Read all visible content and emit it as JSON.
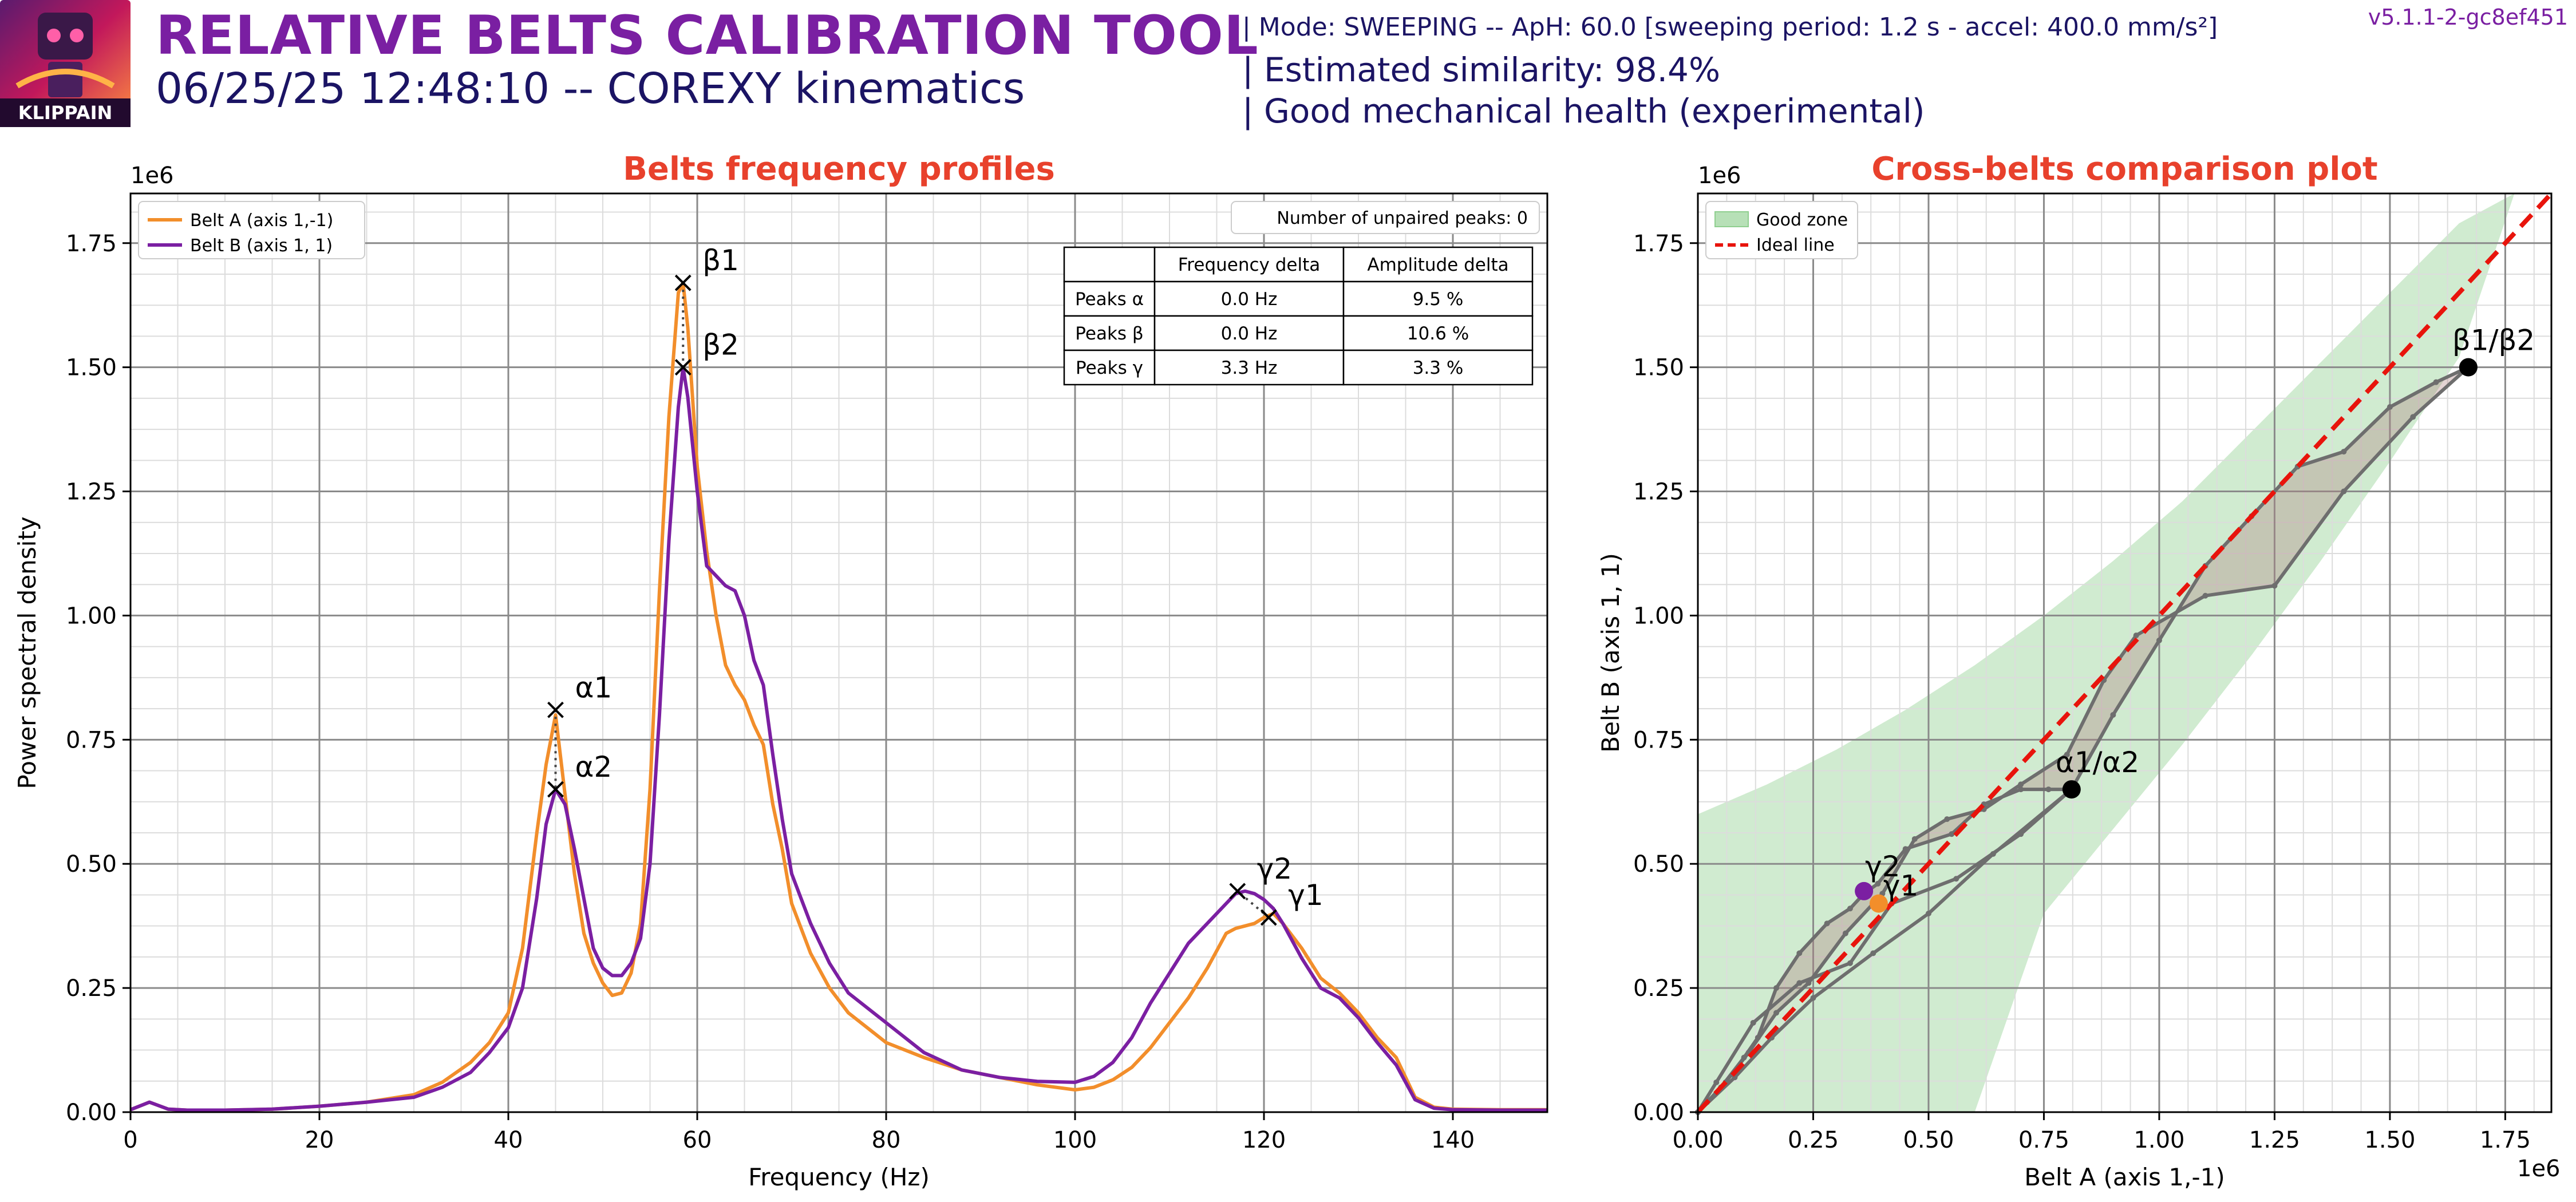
{
  "header": {
    "logo_text": "KLIPPAIN",
    "title": "RELATIVE BELTS CALIBRATION TOOL",
    "subtitle": "06/25/25 12:48:10 -- COREXY kinematics",
    "mode_line": "| Mode: SWEEPING -- ApH: 60.0 [sweeping period: 1.2 s - accel: 400.0 mm/s²]",
    "similarity_line": "| Estimated similarity: 98.4%",
    "health_line": "| Good mechanical health (experimental)",
    "version": "v5.1.1-2-gc8ef451"
  },
  "colors": {
    "belt_a": "#f28e2b",
    "belt_b": "#7b1fa2",
    "title_red": "#e8412c",
    "good_zone": "#b7e0b7",
    "ideal_line": "#e8140c",
    "path_gray": "#6e6e6e",
    "fill_pink": "#e0c4c4",
    "header_purple": "#7a1fa2",
    "header_navy": "#1b1464"
  },
  "chart_data": [
    {
      "type": "line",
      "title": "Belts frequency profiles",
      "xlabel": "Frequency (Hz)",
      "ylabel": "Power spectral density",
      "y_scale_label": "1e6",
      "xlim": [
        0,
        150
      ],
      "ylim": [
        0,
        1850000
      ],
      "xticks": [
        0,
        20,
        40,
        60,
        80,
        100,
        120,
        140
      ],
      "xtick_labels": [
        "0",
        "20",
        "40",
        "60",
        "80",
        "100",
        "120",
        "140"
      ],
      "yticks": [
        0,
        250000,
        500000,
        750000,
        1000000,
        1250000,
        1500000,
        1750000
      ],
      "ytick_labels": [
        "0.00",
        "0.25",
        "0.50",
        "0.75",
        "1.00",
        "1.25",
        "1.50",
        "1.75"
      ],
      "grid": true,
      "legend": "top-left",
      "series": [
        {
          "name": "Belt A (axis 1,-1)",
          "color": "#f28e2b",
          "x": [
            0,
            2,
            4,
            6,
            10,
            15,
            20,
            25,
            30,
            33,
            36,
            38,
            40,
            41.5,
            43,
            44,
            45,
            46,
            47,
            48,
            49,
            50,
            51,
            52,
            53,
            54,
            55,
            56,
            57,
            58,
            58.5,
            59,
            60,
            61,
            62,
            63,
            64,
            65,
            66,
            67,
            68,
            69,
            70,
            72,
            74,
            76,
            78,
            80,
            84,
            88,
            92,
            96,
            100,
            102,
            104,
            106,
            108,
            110,
            112,
            114,
            116,
            117,
            118,
            119,
            120,
            121,
            122,
            124,
            126,
            128,
            130,
            132,
            134,
            136,
            138,
            140,
            145,
            150
          ],
          "y": [
            5000,
            20000,
            6000,
            4000,
            4000,
            6000,
            12000,
            20000,
            35000,
            60000,
            100000,
            140000,
            200000,
            330000,
            560000,
            700000,
            800000,
            640000,
            480000,
            360000,
            300000,
            260000,
            235000,
            240000,
            280000,
            380000,
            650000,
            1050000,
            1400000,
            1650000,
            1670000,
            1580000,
            1300000,
            1130000,
            1000000,
            900000,
            860000,
            830000,
            780000,
            740000,
            620000,
            530000,
            420000,
            320000,
            250000,
            200000,
            170000,
            140000,
            110000,
            85000,
            70000,
            55000,
            45000,
            50000,
            65000,
            90000,
            130000,
            180000,
            230000,
            290000,
            360000,
            370000,
            375000,
            380000,
            392000,
            400000,
            380000,
            330000,
            270000,
            240000,
            200000,
            150000,
            110000,
            30000,
            10000,
            6000,
            5000,
            5000
          ]
        },
        {
          "name": "Belt B (axis 1, 1)",
          "color": "#7b1fa2",
          "x": [
            0,
            2,
            4,
            6,
            10,
            15,
            20,
            25,
            30,
            33,
            36,
            38,
            40,
            41.5,
            43,
            44,
            45,
            46,
            47,
            48,
            49,
            50,
            51,
            52,
            53,
            54,
            55,
            56,
            57,
            58,
            58.5,
            59,
            60,
            61,
            62,
            63,
            64,
            65,
            66,
            67,
            68,
            69,
            70,
            72,
            74,
            76,
            78,
            80,
            84,
            88,
            92,
            96,
            100,
            102,
            104,
            106,
            108,
            110,
            112,
            114,
            116,
            117,
            118,
            119,
            120,
            121,
            122,
            124,
            126,
            128,
            130,
            132,
            134,
            136,
            138,
            140,
            145,
            150
          ],
          "y": [
            5000,
            20000,
            6000,
            4000,
            4000,
            6000,
            12000,
            20000,
            30000,
            50000,
            80000,
            120000,
            170000,
            250000,
            430000,
            580000,
            650000,
            620000,
            530000,
            430000,
            330000,
            290000,
            275000,
            275000,
            300000,
            350000,
            500000,
            800000,
            1150000,
            1420000,
            1500000,
            1440000,
            1250000,
            1100000,
            1080000,
            1060000,
            1050000,
            1000000,
            910000,
            860000,
            720000,
            590000,
            480000,
            380000,
            300000,
            240000,
            210000,
            180000,
            120000,
            85000,
            70000,
            62000,
            60000,
            72000,
            100000,
            150000,
            220000,
            280000,
            340000,
            380000,
            420000,
            440000,
            445000,
            440000,
            428000,
            410000,
            380000,
            310000,
            250000,
            230000,
            190000,
            140000,
            95000,
            25000,
            8000,
            5000,
            4000,
            4000
          ]
        }
      ],
      "peaks": [
        {
          "label": "α1",
          "x": 45,
          "y": 810000,
          "series": "Belt A (axis 1,-1)"
        },
        {
          "label": "α2",
          "x": 45,
          "y": 650000,
          "series": "Belt B (axis 1, 1)"
        },
        {
          "label": "β1",
          "x": 58.5,
          "y": 1670000,
          "series": "Belt A (axis 1,-1)"
        },
        {
          "label": "β2",
          "x": 58.5,
          "y": 1500000,
          "series": "Belt B (axis 1, 1)"
        },
        {
          "label": "γ1",
          "x": 120.5,
          "y": 392000,
          "series": "Belt A (axis 1,-1)"
        },
        {
          "label": "γ2",
          "x": 117.2,
          "y": 445000,
          "series": "Belt B (axis 1, 1)"
        }
      ],
      "unpaired_peaks_label": "Number of unpaired peaks: 0",
      "table": {
        "columns": [
          "",
          "Frequency delta",
          "Amplitude delta"
        ],
        "rows": [
          [
            "Peaks α",
            "0.0 Hz",
            "9.5 %"
          ],
          [
            "Peaks β",
            "0.0 Hz",
            "10.6 %"
          ],
          [
            "Peaks γ",
            "3.3 Hz",
            "3.3 %"
          ]
        ]
      }
    },
    {
      "type": "scatter",
      "title": "Cross-belts comparison plot",
      "xlabel": "Belt A (axis 1,-1)",
      "ylabel": "Belt B (axis 1, 1)",
      "x_scale_label": "1e6",
      "y_scale_label": "1e6",
      "xlim": [
        0,
        1850000
      ],
      "ylim": [
        0,
        1850000
      ],
      "xticks": [
        0,
        250000,
        500000,
        750000,
        1000000,
        1250000,
        1500000,
        1750000
      ],
      "xtick_labels": [
        "0.00",
        "0.25",
        "0.50",
        "0.75",
        "1.00",
        "1.25",
        "1.50",
        "1.75"
      ],
      "yticks": [
        0,
        250000,
        500000,
        750000,
        1000000,
        1250000,
        1500000,
        1750000
      ],
      "ytick_labels": [
        "0.00",
        "0.25",
        "0.50",
        "0.75",
        "1.00",
        "1.25",
        "1.50",
        "1.75"
      ],
      "grid": true,
      "legend": "top-left",
      "legend_entries": [
        "Good zone",
        "Ideal line"
      ],
      "ideal_line": [
        [
          0,
          0
        ],
        [
          1850000,
          1850000
        ]
      ],
      "good_zone": {
        "upper": [
          [
            0,
            600000
          ],
          [
            150000,
            660000
          ],
          [
            300000,
            730000
          ],
          [
            450000,
            810000
          ],
          [
            600000,
            900000
          ],
          [
            750000,
            1000000
          ],
          [
            900000,
            1110000
          ],
          [
            1050000,
            1230000
          ],
          [
            1200000,
            1370000
          ],
          [
            1350000,
            1510000
          ],
          [
            1500000,
            1650000
          ],
          [
            1650000,
            1790000
          ],
          [
            1770000,
            1850000
          ]
        ],
        "lower": [
          [
            1770000,
            1850000
          ],
          [
            1650000,
            1520000
          ],
          [
            1500000,
            1310000
          ],
          [
            1350000,
            1110000
          ],
          [
            1200000,
            920000
          ],
          [
            1050000,
            740000
          ],
          [
            900000,
            570000
          ],
          [
            750000,
            400000
          ],
          [
            600000,
            0
          ]
        ]
      },
      "path_points": [
        [
          0,
          0
        ],
        [
          50000,
          50000
        ],
        [
          100000,
          110000
        ],
        [
          130000,
          150000
        ],
        [
          170000,
          250000
        ],
        [
          220000,
          320000
        ],
        [
          280000,
          380000
        ],
        [
          330000,
          410000
        ],
        [
          360000,
          440000
        ],
        [
          390000,
          460000
        ],
        [
          450000,
          530000
        ],
        [
          550000,
          560000
        ],
        [
          620000,
          620000
        ],
        [
          700000,
          650000
        ],
        [
          760000,
          650000
        ],
        [
          810000,
          650000
        ],
        [
          900000,
          800000
        ],
        [
          1000000,
          950000
        ],
        [
          1100000,
          1100000
        ],
        [
          1200000,
          1200000
        ],
        [
          1300000,
          1300000
        ],
        [
          1400000,
          1330000
        ],
        [
          1500000,
          1420000
        ],
        [
          1600000,
          1470000
        ],
        [
          1670000,
          1500000
        ],
        [
          1550000,
          1400000
        ],
        [
          1400000,
          1250000
        ],
        [
          1250000,
          1060000
        ],
        [
          1100000,
          1040000
        ],
        [
          950000,
          960000
        ],
        [
          880000,
          870000
        ],
        [
          800000,
          720000
        ],
        [
          700000,
          660000
        ],
        [
          620000,
          610000
        ],
        [
          540000,
          590000
        ],
        [
          470000,
          550000
        ],
        [
          400000,
          440000
        ],
        [
          320000,
          360000
        ],
        [
          240000,
          260000
        ],
        [
          170000,
          200000
        ],
        [
          110000,
          120000
        ],
        [
          60000,
          60000
        ],
        [
          20000,
          20000
        ],
        [
          0,
          0
        ]
      ],
      "inner_points": [
        [
          0,
          0
        ],
        [
          80000,
          70000
        ],
        [
          160000,
          150000
        ],
        [
          250000,
          230000
        ],
        [
          380000,
          320000
        ],
        [
          500000,
          400000
        ],
        [
          640000,
          520000
        ],
        [
          810000,
          650000
        ],
        [
          700000,
          560000
        ],
        [
          560000,
          470000
        ],
        [
          420000,
          420000
        ],
        [
          330000,
          300000
        ],
        [
          220000,
          260000
        ],
        [
          120000,
          180000
        ],
        [
          40000,
          60000
        ],
        [
          0,
          0
        ]
      ],
      "labeled_points": [
        {
          "label": "β1/β2",
          "x": 1670000,
          "y": 1500000,
          "color": "#000000"
        },
        {
          "label": "α1/α2",
          "x": 810000,
          "y": 650000,
          "color": "#000000"
        },
        {
          "label": "γ2",
          "x": 360000,
          "y": 445000,
          "color": "#7b1fa2"
        },
        {
          "label": "γ1",
          "x": 392000,
          "y": 420000,
          "color": "#f28e2b"
        }
      ]
    }
  ]
}
